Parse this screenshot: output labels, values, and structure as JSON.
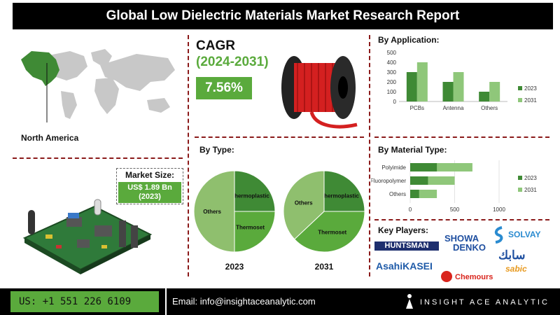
{
  "title": "Global Low Dielectric Materials Market Research Report",
  "region": {
    "label": "North America"
  },
  "market_size": {
    "label": "Market Size:",
    "value": "US$ 1.89 Bn",
    "year": "(2023)"
  },
  "cagr": {
    "label": "CAGR",
    "period": "(2024-2031)",
    "value": "7.56%"
  },
  "by_type": {
    "heading": "By Type:"
  },
  "by_application": {
    "heading": "By Application:"
  },
  "by_material": {
    "heading": "By Material Type:"
  },
  "key_players": {
    "heading": "Key Players:",
    "names": [
      "HUNTSMAN",
      "SHOWA",
      "DENKO",
      "SOLVAY",
      "AsahiKASEI",
      "Chemours",
      "سابك",
      "sabic"
    ]
  },
  "footer": {
    "phone": "US: +1 551 226 6109",
    "email": "Email: info@insightaceanalytic.com",
    "brand": "INSIGHT ACE ANALYTIC"
  },
  "colors": {
    "dark_green": "#3f8a35",
    "light_green": "#8fc77a",
    "accent_green": "#5aaa3c",
    "mid_green": "#6aa84f"
  },
  "chart_data": [
    {
      "type": "bar",
      "title": "By Application:",
      "categories": [
        "PCBs",
        "Antenna",
        "Others"
      ],
      "series": [
        {
          "name": "2023",
          "values": [
            300,
            200,
            100
          ]
        },
        {
          "name": "2031",
          "values": [
            400,
            300,
            200
          ]
        }
      ],
      "ylim": [
        0,
        500
      ],
      "yticks": [
        0,
        100,
        200,
        300,
        400,
        500
      ],
      "legend": "right"
    },
    {
      "type": "bar",
      "orientation": "horizontal",
      "title": "By Material Type:",
      "categories": [
        "Polyimide",
        "Fluoropolymer",
        "Others"
      ],
      "series": [
        {
          "name": "2023",
          "values": [
            300,
            200,
            100
          ]
        },
        {
          "name": "2031",
          "values": [
            700,
            500,
            300
          ]
        }
      ],
      "xlim": [
        0,
        1000
      ],
      "xticks": [
        0,
        500,
        1000
      ],
      "legend": "right"
    },
    {
      "type": "pie",
      "title": "2023",
      "labels": [
        "Thermoplastic",
        "Thermoset",
        "Others"
      ],
      "values": [
        25,
        25,
        50
      ]
    },
    {
      "type": "pie",
      "title": "2031",
      "labels": [
        "Thermoplastic",
        "Thermoset",
        "Others"
      ],
      "values": [
        25,
        38,
        37
      ]
    }
  ]
}
